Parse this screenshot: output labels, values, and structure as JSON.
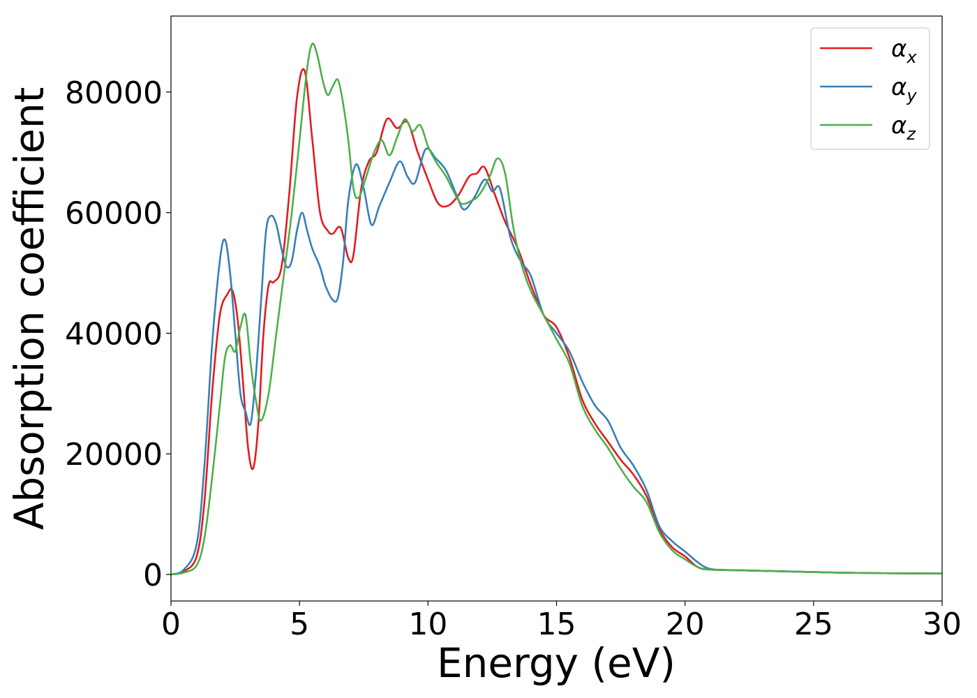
{
  "chart_data": {
    "type": "line",
    "title": "",
    "xlabel": "Energy (eV)",
    "ylabel": "Absorption coefficient",
    "xlim": [
      0,
      30
    ],
    "ylim": [
      -4400,
      92600
    ],
    "xticks": [
      "0",
      "5",
      "10",
      "15",
      "20",
      "25",
      "30"
    ],
    "yticks": [
      "0",
      "20000",
      "40000",
      "60000",
      "80000"
    ],
    "grid": false,
    "legend_position": "top-right",
    "series": [
      {
        "name": "α",
        "subscript": "x",
        "color": "#e41a1c",
        "x": [
          0,
          0.5,
          1.0,
          1.3,
          1.6,
          1.9,
          2.2,
          2.4,
          2.6,
          2.8,
          3.0,
          3.2,
          3.4,
          3.6,
          3.8,
          4.0,
          4.3,
          4.6,
          4.9,
          5.2,
          5.5,
          5.8,
          6.1,
          6.3,
          6.6,
          6.9,
          7.1,
          7.4,
          7.7,
          8.0,
          8.4,
          8.8,
          9.2,
          9.6,
          10.0,
          10.4,
          10.8,
          11.2,
          11.6,
          11.9,
          12.2,
          12.6,
          13.0,
          13.5,
          14.0,
          14.5,
          15.0,
          15.5,
          16.0,
          16.5,
          17.0,
          17.5,
          18.0,
          18.5,
          19.0,
          19.5,
          20.0,
          20.5,
          21.0,
          22.0,
          24.0,
          26.0,
          28.0,
          30.0
        ],
        "y": [
          0,
          500,
          3000,
          12000,
          30000,
          43000,
          46500,
          47000,
          42000,
          32000,
          21000,
          17600,
          25000,
          40000,
          48000,
          48500,
          51000,
          63000,
          79000,
          83500,
          72000,
          60000,
          57000,
          56500,
          57500,
          52500,
          53000,
          64000,
          68500,
          70000,
          75500,
          74000,
          75000,
          70000,
          65500,
          61500,
          61200,
          63000,
          66000,
          66500,
          67500,
          63000,
          58500,
          54000,
          48000,
          43000,
          41000,
          36000,
          29000,
          25000,
          22000,
          19000,
          16500,
          13000,
          7500,
          4500,
          3000,
          1200,
          800,
          700,
          500,
          300,
          200,
          150
        ]
      },
      {
        "name": "α",
        "subscript": "y",
        "color": "#377eb8",
        "x": [
          0,
          0.5,
          1.0,
          1.3,
          1.6,
          1.9,
          2.1,
          2.3,
          2.5,
          2.7,
          2.9,
          3.1,
          3.3,
          3.5,
          3.7,
          3.9,
          4.1,
          4.3,
          4.5,
          4.7,
          4.9,
          5.1,
          5.3,
          5.5,
          5.8,
          6.0,
          6.3,
          6.5,
          6.7,
          6.9,
          7.2,
          7.5,
          7.8,
          8.1,
          8.5,
          8.9,
          9.2,
          9.5,
          9.9,
          10.3,
          10.7,
          11.1,
          11.4,
          11.8,
          12.2,
          12.5,
          12.8,
          13.2,
          13.6,
          14.0,
          14.5,
          15.0,
          15.5,
          16.0,
          16.5,
          17.0,
          17.5,
          18.0,
          18.5,
          19.0,
          19.5,
          20.0,
          20.5,
          21.0,
          22.0,
          24.0,
          26.0,
          28.0,
          30.0
        ],
        "y": [
          0,
          800,
          5000,
          18000,
          38000,
          52000,
          55500,
          50000,
          40000,
          30000,
          27000,
          25000,
          33000,
          45000,
          57000,
          59500,
          58000,
          54000,
          51000,
          52000,
          57000,
          60000,
          57000,
          54000,
          51000,
          48000,
          45500,
          46000,
          52000,
          62000,
          68000,
          64000,
          58000,
          61000,
          65000,
          68500,
          66000,
          65000,
          70500,
          69000,
          67000,
          63000,
          60500,
          62500,
          65500,
          63500,
          64000,
          56000,
          52000,
          49500,
          43000,
          40000,
          37000,
          32000,
          28000,
          25500,
          21000,
          18000,
          14000,
          8000,
          5500,
          3800,
          2000,
          900,
          700,
          500,
          300,
          200,
          150
        ]
      },
      {
        "name": "α",
        "subscript": "z",
        "color": "#4daf4a",
        "x": [
          0,
          0.5,
          1.0,
          1.3,
          1.6,
          1.9,
          2.1,
          2.3,
          2.5,
          2.7,
          2.9,
          3.1,
          3.3,
          3.5,
          3.8,
          4.1,
          4.4,
          4.7,
          5.0,
          5.3,
          5.5,
          5.7,
          5.9,
          6.1,
          6.3,
          6.5,
          6.7,
          6.9,
          7.1,
          7.3,
          7.6,
          7.9,
          8.2,
          8.5,
          8.8,
          9.1,
          9.4,
          9.7,
          10.0,
          10.3,
          10.7,
          11.0,
          11.3,
          11.7,
          12.0,
          12.4,
          12.7,
          13.0,
          13.3,
          13.6,
          14.0,
          14.5,
          15.0,
          15.5,
          16.0,
          16.5,
          17.0,
          17.5,
          18.0,
          18.5,
          19.0,
          19.5,
          20.0,
          20.5,
          21.0,
          22.0,
          24.0,
          26.0,
          28.0,
          30.0
        ],
        "y": [
          0,
          300,
          1500,
          6000,
          16000,
          28000,
          36000,
          38000,
          37000,
          41000,
          43000,
          35000,
          29000,
          25500,
          30000,
          40000,
          50000,
          60000,
          72000,
          84000,
          88000,
          86000,
          82000,
          79500,
          81000,
          82000,
          78000,
          72000,
          64000,
          62500,
          66000,
          70000,
          72000,
          69500,
          72500,
          75500,
          73500,
          74500,
          71000,
          68500,
          66000,
          63500,
          61500,
          62000,
          63000,
          66000,
          69000,
          66500,
          58000,
          52000,
          47000,
          43000,
          39000,
          35000,
          28000,
          24000,
          21000,
          17500,
          14500,
          12000,
          7000,
          4000,
          2500,
          1200,
          800,
          700,
          500,
          300,
          200,
          150
        ]
      }
    ]
  }
}
